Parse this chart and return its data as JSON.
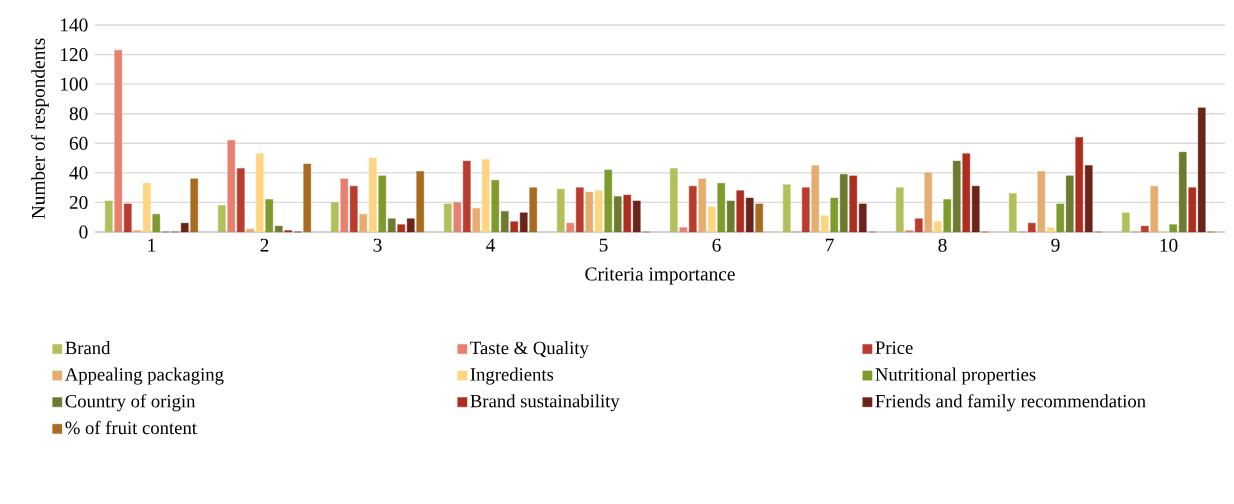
{
  "chart_data": {
    "type": "bar",
    "xlabel": "Criteria importance",
    "ylabel": "Number of respondents",
    "categories": [
      "1",
      "2",
      "3",
      "4",
      "5",
      "6",
      "7",
      "8",
      "9",
      "10"
    ],
    "series": [
      {
        "name": "Brand",
        "color": "#b3bf5a",
        "values": [
          21,
          18,
          20,
          19,
          29,
          43,
          32,
          30,
          26,
          13
        ]
      },
      {
        "name": "Taste & Quality",
        "color": "#e88070",
        "values": [
          123,
          62,
          36,
          20,
          6,
          3,
          0,
          1,
          0,
          0
        ]
      },
      {
        "name": "Price",
        "color": "#b93c2e",
        "values": [
          19,
          43,
          31,
          48,
          30,
          31,
          30,
          9,
          6,
          4
        ]
      },
      {
        "name": "Appealing packaging",
        "color": "#e5ad6f",
        "values": [
          1,
          2,
          12,
          16,
          27,
          36,
          45,
          40,
          41,
          31
        ]
      },
      {
        "name": "Ingredients",
        "color": "#fdd582",
        "values": [
          33,
          53,
          50,
          49,
          28,
          17,
          11,
          7,
          3,
          0
        ]
      },
      {
        "name": "Nutritional properties",
        "color": "#7f9a2d",
        "values": [
          12,
          22,
          38,
          35,
          42,
          33,
          23,
          22,
          19,
          5
        ]
      },
      {
        "name": "Country of origin",
        "color": "#6d7a30",
        "values": [
          0,
          4,
          9,
          14,
          24,
          21,
          39,
          48,
          38,
          54
        ]
      },
      {
        "name": "Brand sustainability",
        "color": "#ad2e1e",
        "values": [
          0,
          1,
          5,
          7,
          25,
          28,
          38,
          53,
          64,
          30
        ]
      },
      {
        "name": "Friends and family recommendation",
        "color": "#6a241a",
        "values": [
          6,
          0,
          9,
          13,
          21,
          23,
          19,
          31,
          45,
          84
        ]
      },
      {
        "name": "% of fruit content",
        "color": "#a86c21",
        "values": [
          36,
          46,
          41,
          30,
          0,
          19,
          0,
          0,
          0,
          0
        ]
      }
    ],
    "ylim": [
      0,
      140
    ],
    "yticks": [
      0,
      20,
      40,
      60,
      80,
      100,
      120,
      140
    ],
    "grid": "y",
    "legend": "bottom"
  }
}
